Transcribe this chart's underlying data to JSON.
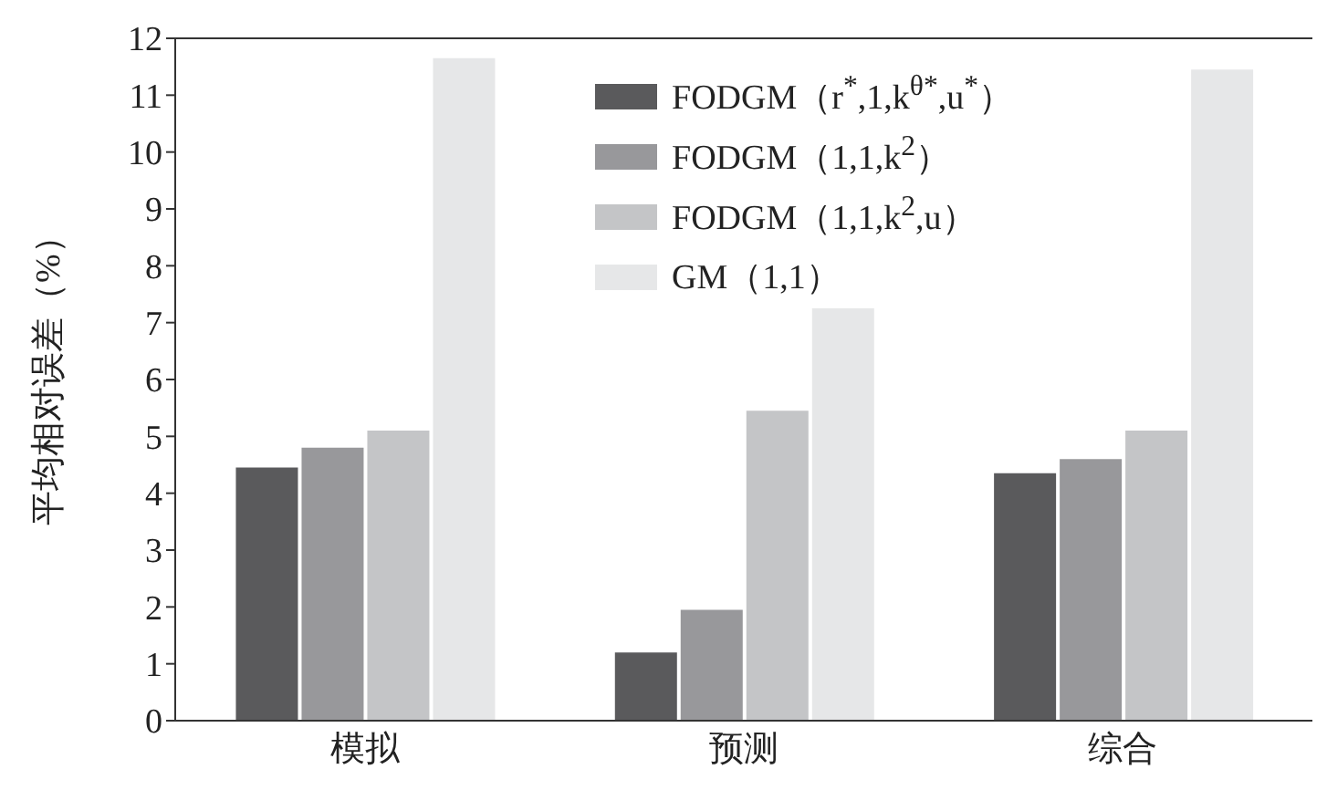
{
  "chart_data": {
    "type": "bar",
    "ylabel": "平均相对误差（%）",
    "categories": [
      "模拟",
      "预测",
      "综合"
    ],
    "series": [
      {
        "name": "FODGM（r$^{*}$,1,k$^{θ*}$,u$^{*}$）",
        "color": "#5a5a5c",
        "values": [
          4.45,
          1.2,
          4.35
        ]
      },
      {
        "name": "FODGM（1,1,k$^{2}$）",
        "color": "#98989b",
        "values": [
          4.8,
          1.95,
          4.6
        ]
      },
      {
        "name": "FODGM（1,1,k$^{2}$,u）",
        "color": "#c4c5c7",
        "values": [
          5.1,
          5.45,
          5.1
        ]
      },
      {
        "name": "GM（1,1）",
        "color": "#e6e7e8",
        "values": [
          11.65,
          7.25,
          11.45
        ]
      }
    ],
    "ylim": [
      0,
      12
    ],
    "yticks": [
      0,
      1,
      2,
      3,
      4,
      5,
      6,
      7,
      8,
      9,
      10,
      11,
      12
    ],
    "grid": false,
    "legend": "top right"
  }
}
